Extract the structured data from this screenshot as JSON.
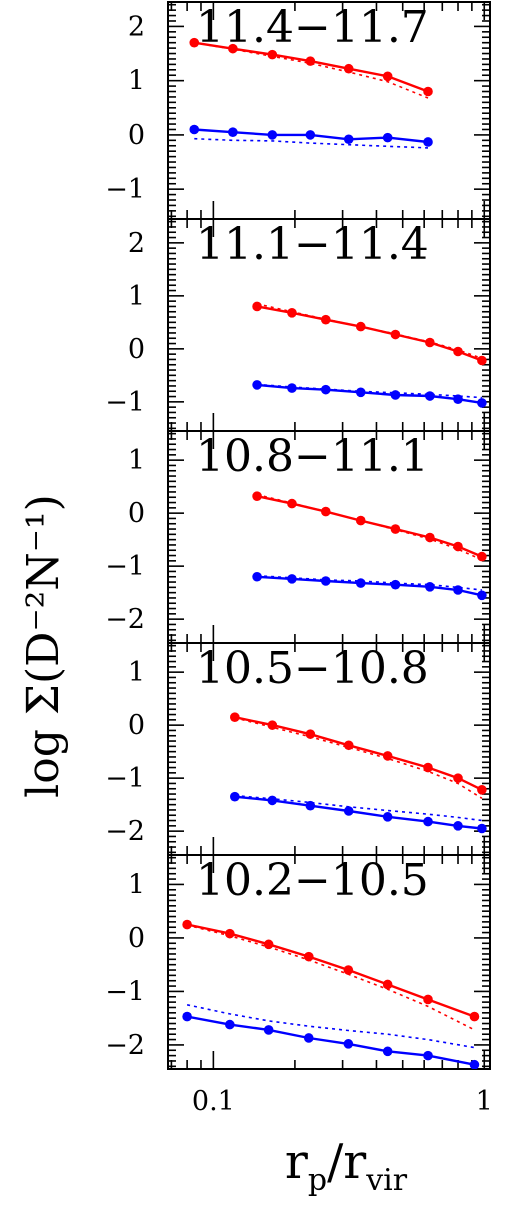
{
  "chart_data": {
    "type": "line",
    "xlabel": "r_p/r_vir",
    "ylabel": "log Σ(D⁻²N⁻¹)",
    "xscale": "log",
    "xlim": [
      0.068,
      1.05
    ],
    "x_ticks": [
      {
        "value": 0.1,
        "label": "0.1"
      },
      {
        "value": 1,
        "label": "1"
      }
    ],
    "grid": false,
    "colors": {
      "red": "#ff0000",
      "blue": "#0000ff",
      "axes": "#000000"
    },
    "panels": [
      {
        "label": "11.4−11.7",
        "ylim": [
          -1.55,
          2.45
        ],
        "y_ticks": [
          {
            "value": 2,
            "label": "2"
          },
          {
            "value": 1,
            "label": "1"
          },
          {
            "value": 0,
            "label": "0"
          },
          {
            "value": -1,
            "label": "−1"
          }
        ],
        "series": [
          {
            "color": "red",
            "style": "solid-markers",
            "x": [
              0.085,
              0.118,
              0.165,
              0.228,
              0.316,
              0.44,
              0.62
            ],
            "y": [
              1.7,
              1.59,
              1.48,
              1.36,
              1.22,
              1.08,
              0.8
            ]
          },
          {
            "color": "red",
            "style": "dotted",
            "x": [
              0.085,
              0.118,
              0.165,
              0.228,
              0.316,
              0.44,
              0.62
            ],
            "y": [
              1.7,
              1.58,
              1.45,
              1.32,
              1.16,
              0.98,
              0.68
            ]
          },
          {
            "color": "blue",
            "style": "solid-markers",
            "x": [
              0.085,
              0.118,
              0.165,
              0.228,
              0.316,
              0.44,
              0.62
            ],
            "y": [
              0.1,
              0.05,
              0.0,
              0.0,
              -0.08,
              -0.05,
              -0.13
            ]
          },
          {
            "color": "blue",
            "style": "dotted",
            "x": [
              0.085,
              0.118,
              0.165,
              0.228,
              0.316,
              0.44,
              0.62
            ],
            "y": [
              -0.07,
              -0.1,
              -0.11,
              -0.15,
              -0.18,
              -0.21,
              -0.24
            ]
          }
        ]
      },
      {
        "label": "11.1−11.4",
        "ylim": [
          -1.55,
          2.45
        ],
        "y_ticks": [
          {
            "value": 2,
            "label": "2"
          },
          {
            "value": 1,
            "label": "1"
          },
          {
            "value": 0,
            "label": "0"
          },
          {
            "value": -1,
            "label": "−1"
          }
        ],
        "series": [
          {
            "color": "red",
            "style": "solid-markers",
            "x": [
              0.145,
              0.195,
              0.26,
              0.35,
              0.47,
              0.63,
              0.8,
              0.98
            ],
            "y": [
              0.8,
              0.68,
              0.55,
              0.42,
              0.27,
              0.12,
              -0.05,
              -0.22
            ]
          },
          {
            "color": "red",
            "style": "dotted",
            "x": [
              0.145,
              0.195,
              0.26,
              0.35,
              0.47,
              0.63,
              0.8,
              0.98
            ],
            "y": [
              0.85,
              0.7,
              0.56,
              0.42,
              0.28,
              0.13,
              -0.02,
              -0.18
            ]
          },
          {
            "color": "blue",
            "style": "solid-markers",
            "x": [
              0.145,
              0.195,
              0.26,
              0.35,
              0.47,
              0.63,
              0.8,
              0.98
            ],
            "y": [
              -0.68,
              -0.74,
              -0.77,
              -0.82,
              -0.87,
              -0.89,
              -0.95,
              -1.02
            ]
          },
          {
            "color": "blue",
            "style": "dotted",
            "x": [
              0.145,
              0.195,
              0.26,
              0.35,
              0.47,
              0.63,
              0.8,
              0.98
            ],
            "y": [
              -0.67,
              -0.72,
              -0.76,
              -0.8,
              -0.83,
              -0.86,
              -0.89,
              -0.92
            ]
          }
        ]
      },
      {
        "label": "10.8−11.1",
        "ylim": [
          -2.45,
          1.55
        ],
        "y_ticks": [
          {
            "value": 1,
            "label": "1"
          },
          {
            "value": 0,
            "label": "0"
          },
          {
            "value": -1,
            "label": "−1"
          },
          {
            "value": -2,
            "label": "−2"
          }
        ],
        "series": [
          {
            "color": "red",
            "style": "solid-markers",
            "x": [
              0.145,
              0.195,
              0.26,
              0.35,
              0.47,
              0.63,
              0.8,
              0.98
            ],
            "y": [
              0.32,
              0.18,
              0.03,
              -0.14,
              -0.3,
              -0.46,
              -0.63,
              -0.82
            ]
          },
          {
            "color": "red",
            "style": "dotted",
            "x": [
              0.145,
              0.195,
              0.26,
              0.35,
              0.47,
              0.63,
              0.8,
              0.98
            ],
            "y": [
              0.35,
              0.19,
              0.03,
              -0.14,
              -0.31,
              -0.49,
              -0.68,
              -0.88
            ]
          },
          {
            "color": "blue",
            "style": "solid-markers",
            "x": [
              0.145,
              0.195,
              0.26,
              0.35,
              0.47,
              0.63,
              0.8,
              0.98
            ],
            "y": [
              -1.2,
              -1.24,
              -1.28,
              -1.32,
              -1.35,
              -1.39,
              -1.45,
              -1.55
            ]
          },
          {
            "color": "blue",
            "style": "dotted",
            "x": [
              0.145,
              0.195,
              0.26,
              0.35,
              0.47,
              0.63,
              0.8,
              0.98
            ],
            "y": [
              -1.18,
              -1.22,
              -1.26,
              -1.28,
              -1.32,
              -1.35,
              -1.4,
              -1.45
            ]
          }
        ]
      },
      {
        "label": "10.5−10.8",
        "ylim": [
          -2.45,
          1.55
        ],
        "y_ticks": [
          {
            "value": 1,
            "label": "1"
          },
          {
            "value": 0,
            "label": "0"
          },
          {
            "value": -1,
            "label": "−1"
          },
          {
            "value": -2,
            "label": "−2"
          }
        ],
        "series": [
          {
            "color": "red",
            "style": "solid-markers",
            "x": [
              0.12,
              0.165,
              0.228,
              0.316,
              0.44,
              0.62,
              0.8,
              0.98
            ],
            "y": [
              0.15,
              0.0,
              -0.17,
              -0.38,
              -0.58,
              -0.8,
              -1.0,
              -1.22
            ]
          },
          {
            "color": "red",
            "style": "dotted",
            "x": [
              0.12,
              0.165,
              0.228,
              0.316,
              0.44,
              0.62,
              0.8,
              0.98
            ],
            "y": [
              0.14,
              -0.04,
              -0.22,
              -0.42,
              -0.63,
              -0.87,
              -1.1,
              -1.38
            ]
          },
          {
            "color": "blue",
            "style": "solid-markers",
            "x": [
              0.12,
              0.165,
              0.228,
              0.316,
              0.44,
              0.62,
              0.8,
              0.98
            ],
            "y": [
              -1.35,
              -1.42,
              -1.52,
              -1.62,
              -1.73,
              -1.82,
              -1.9,
              -1.95
            ]
          },
          {
            "color": "blue",
            "style": "dotted",
            "x": [
              0.12,
              0.165,
              0.228,
              0.316,
              0.44,
              0.62,
              0.8,
              0.98
            ],
            "y": [
              -1.33,
              -1.39,
              -1.46,
              -1.54,
              -1.61,
              -1.68,
              -1.74,
              -1.8
            ]
          }
        ]
      },
      {
        "label": "10.2−10.5",
        "ylim": [
          -2.45,
          1.55
        ],
        "y_ticks": [
          {
            "value": 1,
            "label": "1"
          },
          {
            "value": 0,
            "label": "0"
          },
          {
            "value": -1,
            "label": "−1"
          },
          {
            "value": -2,
            "label": "−2"
          }
        ],
        "series": [
          {
            "color": "red",
            "style": "solid-markers",
            "x": [
              0.08,
              0.115,
              0.16,
              0.225,
              0.315,
              0.44,
              0.62,
              0.92
            ],
            "y": [
              0.25,
              0.08,
              -0.12,
              -0.35,
              -0.6,
              -0.87,
              -1.15,
              -1.47
            ]
          },
          {
            "color": "red",
            "style": "dotted",
            "x": [
              0.08,
              0.115,
              0.16,
              0.225,
              0.315,
              0.44,
              0.62,
              0.92
            ],
            "y": [
              0.24,
              0.04,
              -0.17,
              -0.41,
              -0.68,
              -0.96,
              -1.28,
              -1.72
            ]
          },
          {
            "color": "blue",
            "style": "solid-markers",
            "x": [
              0.08,
              0.115,
              0.16,
              0.225,
              0.315,
              0.44,
              0.62,
              0.92
            ],
            "y": [
              -1.47,
              -1.62,
              -1.72,
              -1.87,
              -1.98,
              -2.12,
              -2.2,
              -2.37
            ]
          },
          {
            "color": "blue",
            "style": "dotted",
            "x": [
              0.08,
              0.115,
              0.16,
              0.225,
              0.315,
              0.44,
              0.62,
              0.92
            ],
            "y": [
              -1.25,
              -1.42,
              -1.55,
              -1.65,
              -1.73,
              -1.8,
              -1.9,
              -2.05
            ]
          }
        ]
      }
    ]
  }
}
